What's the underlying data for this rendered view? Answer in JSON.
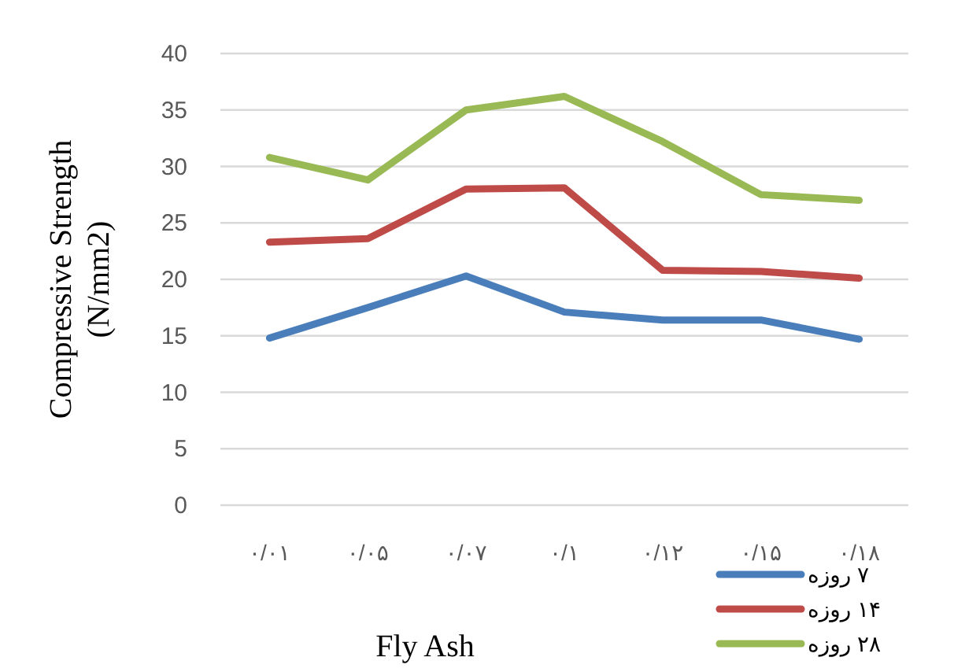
{
  "chart_data": {
    "type": "line",
    "xlabel": "Fly Ash",
    "ylabel": "Compressive Strength (N/mm2)",
    "categories": [
      "۰/۰۱",
      "۰/۰۵",
      "۰/۰۷",
      "۰/۱",
      "۰/۱۲",
      "۰/۱۵",
      "۰/۱۸"
    ],
    "series": [
      {
        "name": "۷ روزه",
        "color": "#4a7ebb",
        "values": [
          14.8,
          17.5,
          20.3,
          17.1,
          16.4,
          16.4,
          14.7
        ]
      },
      {
        "name": "۱۴ روزه",
        "color": "#be4b48",
        "values": [
          23.3,
          23.6,
          28.0,
          28.1,
          20.8,
          20.7,
          20.1
        ]
      },
      {
        "name": "۲۸ روزه",
        "color": "#98b954",
        "values": [
          30.8,
          28.8,
          35.0,
          36.2,
          32.2,
          27.5,
          27.0
        ]
      }
    ],
    "ylim": [
      0,
      40
    ],
    "yticks": [
      0,
      5,
      10,
      15,
      20,
      25,
      30,
      35,
      40
    ],
    "grid": "y",
    "legend": "bottom right",
    "marker": "none",
    "line_style": "solid"
  }
}
